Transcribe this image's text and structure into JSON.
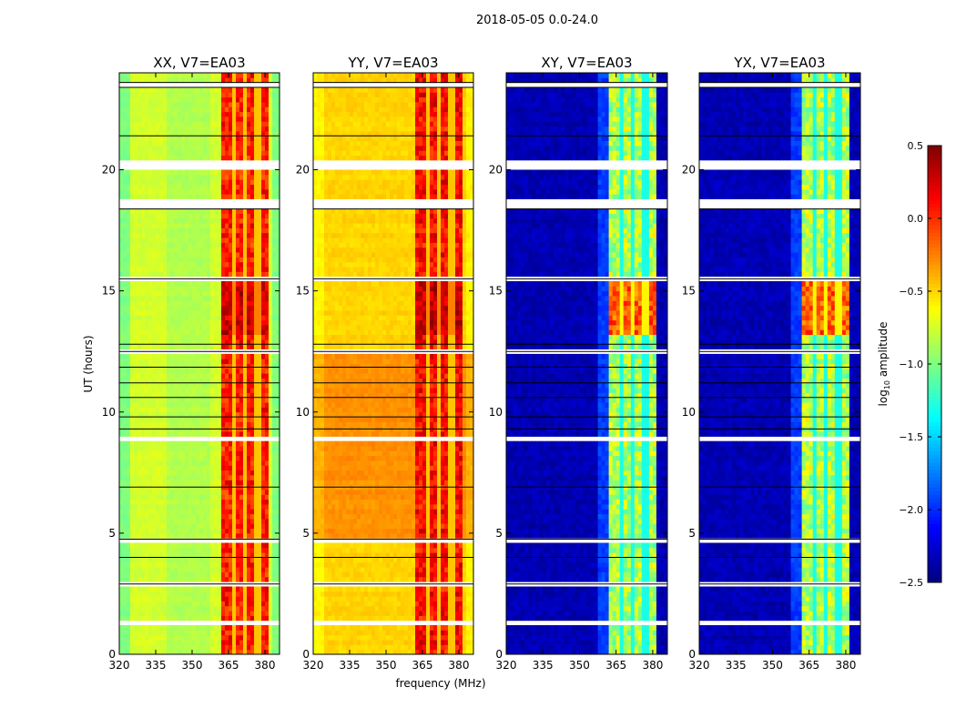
{
  "chart_data": {
    "type": "heatmap",
    "title": "2018-05-05 0.0-24.0",
    "xlabel": "frequency (MHz)",
    "ylabel": "UT (hours)",
    "xlim": [
      320,
      386
    ],
    "ylim": [
      0,
      24
    ],
    "xticks": [
      "320",
      "335",
      "350",
      "365",
      "380"
    ],
    "xtick_values": [
      320,
      335,
      350,
      365,
      380
    ],
    "yticks": [
      "0",
      "5",
      "10",
      "15",
      "20"
    ],
    "ytick_values": [
      0,
      5,
      10,
      15,
      20
    ],
    "colorbar": {
      "label_main": "log",
      "label_sub": "10",
      "label_rest": " amplitude",
      "range": [
        -2.5,
        0.5
      ],
      "ticks": [
        "0.5",
        "0.0",
        "−0.5",
        "−1.0",
        "−1.5",
        "−2.0",
        "−2.5"
      ],
      "tick_values": [
        0.5,
        0.0,
        -0.5,
        -1.0,
        -1.5,
        -2.0,
        -2.5
      ],
      "colormap": "jet"
    },
    "band": {
      "start_mhz": 362,
      "end_mhz": 381.5,
      "dividers_mhz": [
        367,
        372,
        377
      ]
    },
    "flagged_gaps_hours": [
      [
        23.35,
        23.5
      ],
      [
        22.35,
        22.45
      ],
      [
        20.0,
        20.4
      ],
      [
        18.4,
        18.8
      ],
      [
        15.45,
        15.55
      ],
      [
        12.4,
        12.6
      ],
      [
        8.75,
        8.95
      ],
      [
        4.65,
        4.8
      ],
      [
        2.85,
        2.95
      ],
      [
        2.0,
        2.05
      ],
      [
        1.3,
        1.35
      ]
    ],
    "black_lines_hours": [
      23.6,
      23.4,
      21.4,
      18.38,
      15.5,
      12.8,
      12.5,
      11.85,
      11.2,
      10.6,
      9.8,
      9.3,
      6.9,
      4.75,
      4.0,
      2.9
    ],
    "series": [
      {
        "name": "XX, V7=EA03",
        "background": -0.75,
        "band_level": 0.05,
        "edge_drop": -0.25
      },
      {
        "name": "YY, V7=EA03",
        "background": -0.5,
        "band_level": 0.1,
        "edge_drop": -0.1
      },
      {
        "name": "XY, V7=EA03",
        "background": -2.35,
        "band_level": -0.85,
        "edge_drop": 0
      },
      {
        "name": "YX, V7=EA03",
        "background": -2.35,
        "band_level": -0.85,
        "edge_drop": 0
      }
    ]
  }
}
